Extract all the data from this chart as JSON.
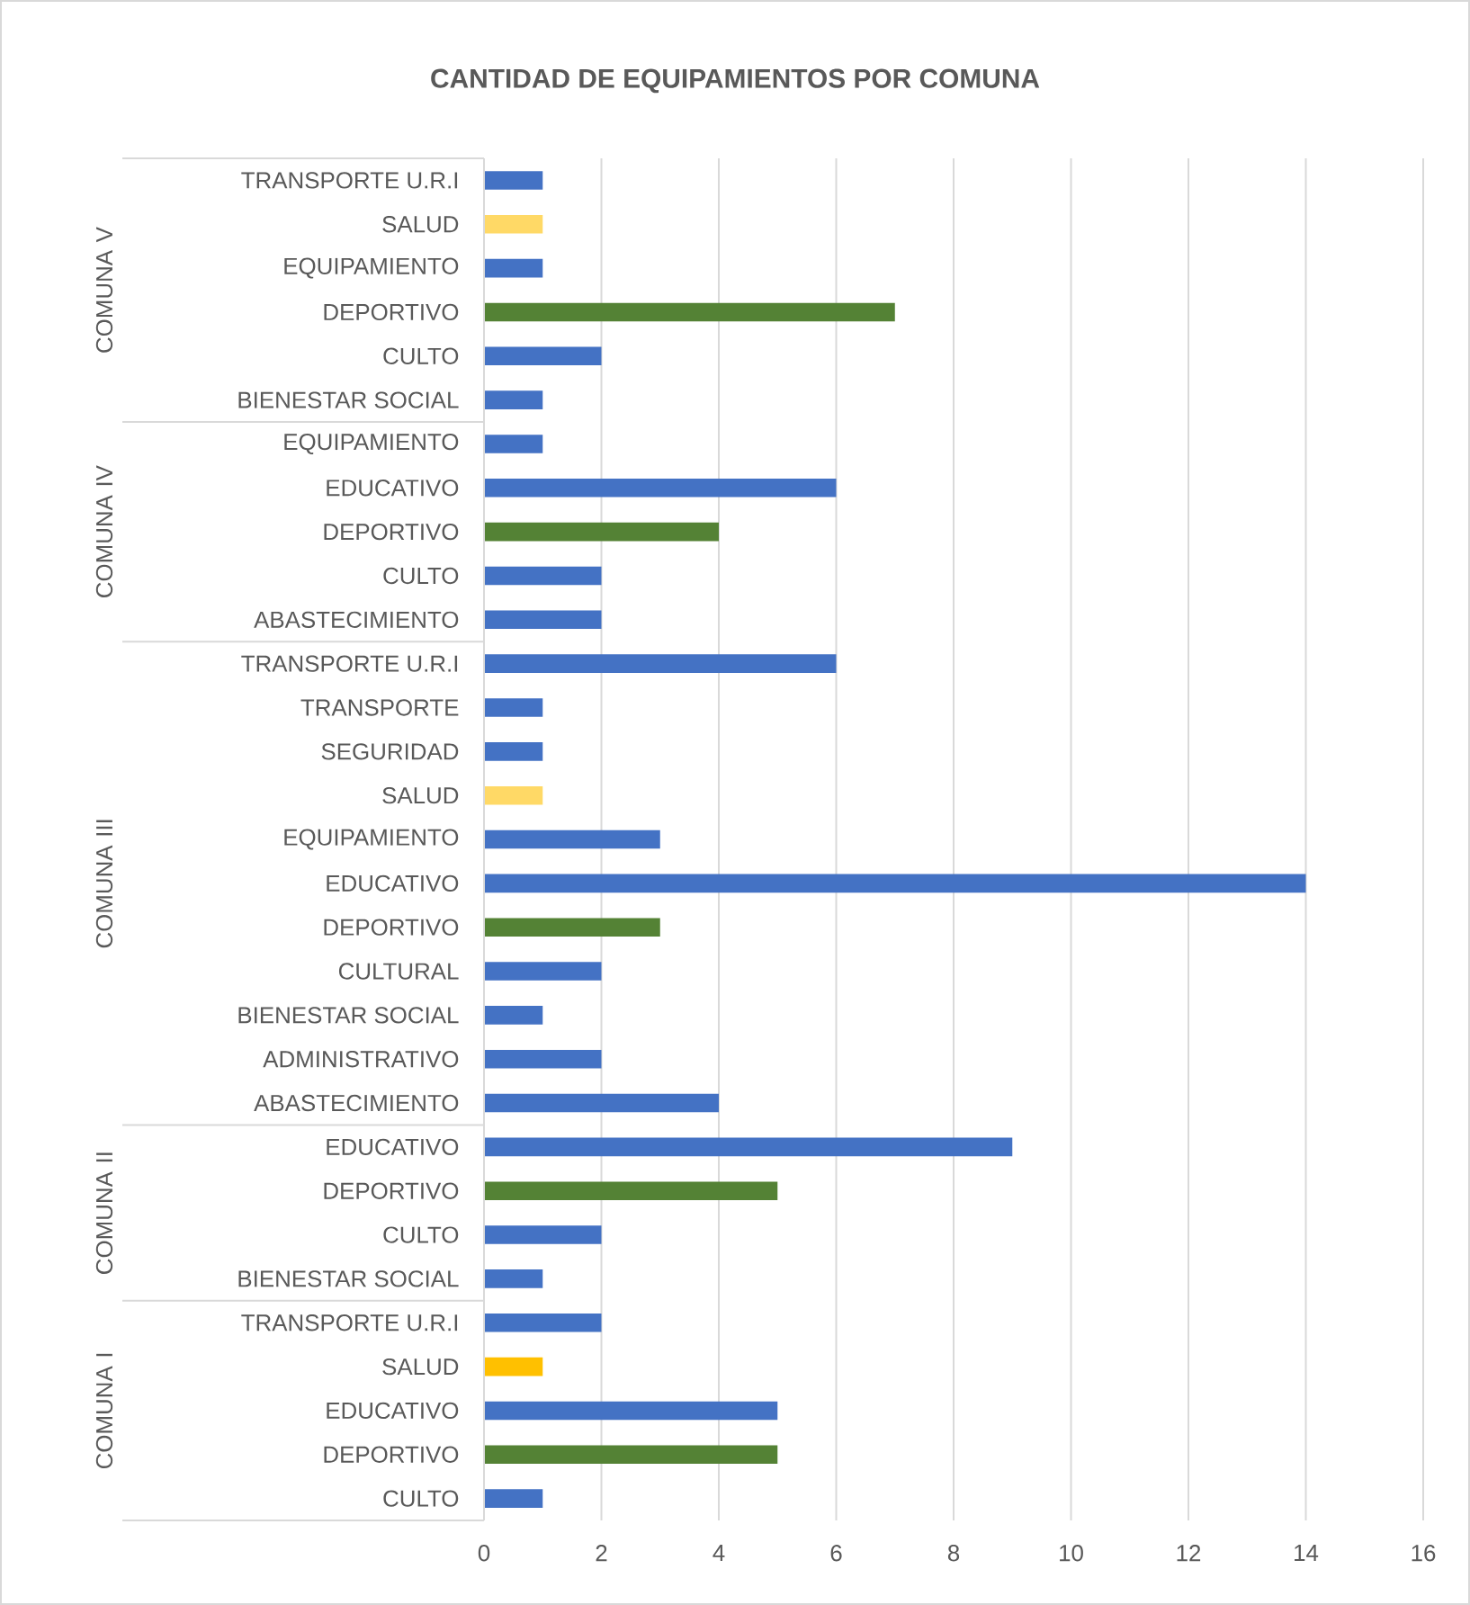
{
  "chart_data": {
    "type": "bar",
    "orientation": "horizontal",
    "title": "CANTIDAD DE EQUIPAMIENTOS POR COMUNA",
    "categories": [
      "TRANSPORTE U.R.I",
      "SALUD",
      "EQUIPAMIENTO",
      "DEPORTIVO",
      "CULTO",
      "BIENESTAR SOCIAL",
      "EQUIPAMIENTO",
      "EDUCATIVO",
      "DEPORTIVO",
      "CULTO",
      "ABASTECIMIENTO",
      "TRANSPORTE U.R.I",
      "TRANSPORTE",
      "SEGURIDAD",
      "SALUD",
      "EQUIPAMIENTO",
      "EDUCATIVO",
      "DEPORTIVO",
      "CULTURAL",
      "BIENESTAR SOCIAL",
      "ADMINISTRATIVO",
      "ABASTECIMIENTO",
      "EDUCATIVO",
      "DEPORTIVO",
      "CULTO",
      "BIENESTAR SOCIAL",
      "TRANSPORTE U.R.I",
      "SALUD",
      "EDUCATIVO",
      "DEPORTIVO",
      "CULTO"
    ],
    "values": [
      1,
      1,
      1,
      7,
      2,
      1,
      1,
      6,
      4,
      2,
      2,
      6,
      1,
      1,
      1,
      3,
      14,
      3,
      2,
      1,
      2,
      4,
      9,
      5,
      2,
      1,
      2,
      1,
      5,
      5,
      1
    ],
    "colors": [
      "#4472c4",
      "#ffd966",
      "#4472c4",
      "#548235",
      "#4472c4",
      "#4472c4",
      "#4472c4",
      "#4472c4",
      "#548235",
      "#4472c4",
      "#4472c4",
      "#4472c4",
      "#4472c4",
      "#4472c4",
      "#ffd966",
      "#4472c4",
      "#4472c4",
      "#548235",
      "#4472c4",
      "#4472c4",
      "#4472c4",
      "#4472c4",
      "#4472c4",
      "#548235",
      "#4472c4",
      "#4472c4",
      "#4472c4",
      "#ffc000",
      "#4472c4",
      "#548235",
      "#4472c4"
    ],
    "xlim": [
      0,
      16
    ],
    "xticks": [
      0,
      2,
      4,
      6,
      8,
      10,
      12,
      14,
      16
    ],
    "grid": "x",
    "annotations": [
      "COMUNA V",
      "COMUNA IV",
      "COMUNA III",
      "COMUNA II",
      "COMUNA I"
    ]
  }
}
